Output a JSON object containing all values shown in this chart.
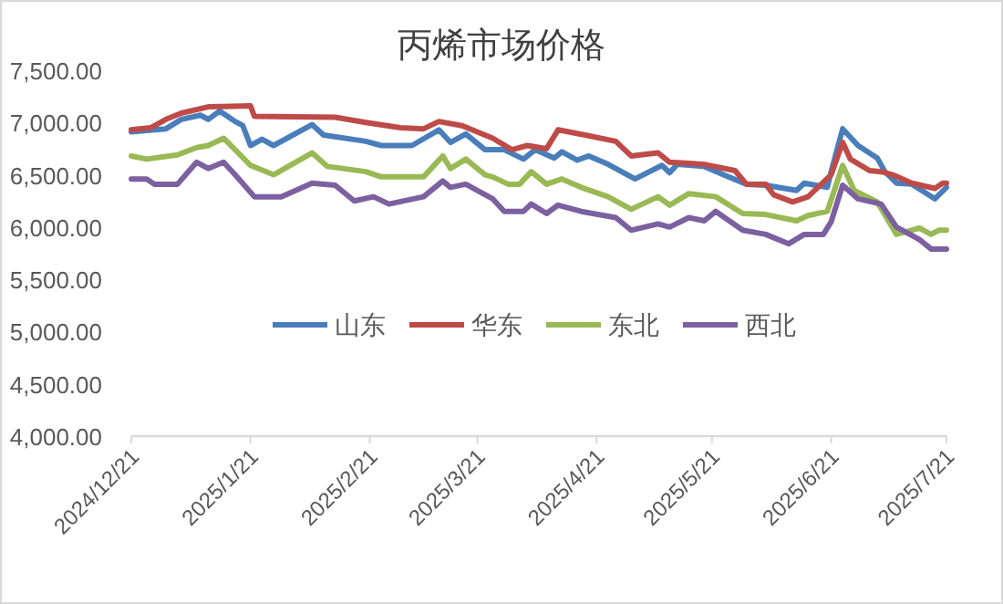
{
  "chart_data": {
    "type": "line",
    "title": "丙烯市场价格",
    "legend": "bottom",
    "grid": false,
    "marker": "none",
    "line_style": "solid",
    "xlim": [
      "2024-12-21",
      "2025-07-21"
    ],
    "xticks": [
      {
        "value": "2024-12-21",
        "label": "2024/12/21"
      },
      {
        "value": "2025-01-21",
        "label": "2025/1/21"
      },
      {
        "value": "2025-02-21",
        "label": "2025/2/21"
      },
      {
        "value": "2025-03-21",
        "label": "2025/3/21"
      },
      {
        "value": "2025-04-21",
        "label": "2025/4/21"
      },
      {
        "value": "2025-05-21",
        "label": "2025/5/21"
      },
      {
        "value": "2025-06-21",
        "label": "2025/6/21"
      },
      {
        "value": "2025-07-21",
        "label": "2025/7/21"
      }
    ],
    "ylim": [
      4000,
      7500
    ],
    "yticks": [
      {
        "value": 4000,
        "label": "4,000.00"
      },
      {
        "value": 4500,
        "label": "4,500.00"
      },
      {
        "value": 5000,
        "label": "5,000.00"
      },
      {
        "value": 5500,
        "label": "5,500.00"
      },
      {
        "value": 6000,
        "label": "6,000.00"
      },
      {
        "value": 6500,
        "label": "6,500.00"
      },
      {
        "value": 7000,
        "label": "7,000.00"
      },
      {
        "value": 7500,
        "label": "7,500.00"
      }
    ],
    "series": [
      {
        "name": "山东",
        "color": "#4a7ebb",
        "x": [
          "2024-12-21",
          "2024-12-30",
          "2025-01-03",
          "2025-01-08",
          "2025-01-10",
          "2025-01-13",
          "2025-01-17",
          "2025-01-19",
          "2025-01-21",
          "2025-01-24",
          "2025-01-27",
          "2025-02-06",
          "2025-02-09",
          "2025-02-20",
          "2025-02-24",
          "2025-03-04",
          "2025-03-11",
          "2025-03-14",
          "2025-03-18",
          "2025-03-23",
          "2025-03-28",
          "2025-04-02",
          "2025-04-05",
          "2025-04-10",
          "2025-04-12",
          "2025-04-16",
          "2025-04-19",
          "2025-04-24",
          "2025-05-01",
          "2025-05-08",
          "2025-05-10",
          "2025-05-12",
          "2025-05-19",
          "2025-05-24",
          "2025-05-30",
          "2025-06-04",
          "2025-06-12",
          "2025-06-14",
          "2025-06-20",
          "2025-06-21",
          "2025-06-24",
          "2025-06-28",
          "2025-07-03",
          "2025-07-05",
          "2025-07-08",
          "2025-07-12",
          "2025-07-18",
          "2025-07-21"
        ],
        "values": [
          6910,
          6940,
          7030,
          7070,
          7030,
          7110,
          7010,
          6970,
          6780,
          6840,
          6780,
          6980,
          6880,
          6820,
          6780,
          6780,
          6930,
          6810,
          6890,
          6740,
          6740,
          6650,
          6740,
          6660,
          6720,
          6640,
          6680,
          6600,
          6460,
          6590,
          6520,
          6600,
          6580,
          6500,
          6410,
          6400,
          6350,
          6420,
          6380,
          6530,
          6940,
          6780,
          6660,
          6530,
          6420,
          6410,
          6270,
          6380
        ]
      },
      {
        "name": "华东",
        "color": "#be4b48",
        "x": [
          "2024-12-21",
          "2024-12-26",
          "2024-12-30",
          "2025-01-03",
          "2025-01-10",
          "2025-01-21",
          "2025-01-22",
          "2025-02-12",
          "2025-02-20",
          "2025-03-01",
          "2025-03-07",
          "2025-03-11",
          "2025-03-17",
          "2025-03-23",
          "2025-03-25",
          "2025-03-30",
          "2025-04-03",
          "2025-04-08",
          "2025-04-11",
          "2025-04-18",
          "2025-04-26",
          "2025-04-30",
          "2025-05-07",
          "2025-05-10",
          "2025-05-19",
          "2025-05-27",
          "2025-05-30",
          "2025-06-04",
          "2025-06-06",
          "2025-06-11",
          "2025-06-15",
          "2025-06-21",
          "2025-06-24",
          "2025-06-26",
          "2025-07-01",
          "2025-07-04",
          "2025-07-07",
          "2025-07-12",
          "2025-07-18",
          "2025-07-20",
          "2025-07-21"
        ],
        "values": [
          6930,
          6950,
          7030,
          7090,
          7150,
          7160,
          7060,
          7050,
          7000,
          6950,
          6940,
          7010,
          6970,
          6880,
          6850,
          6740,
          6780,
          6750,
          6930,
          6880,
          6820,
          6680,
          6710,
          6620,
          6600,
          6540,
          6410,
          6410,
          6310,
          6240,
          6290,
          6500,
          6810,
          6650,
          6540,
          6530,
          6500,
          6420,
          6370,
          6420,
          6420
        ]
      },
      {
        "name": "东北",
        "color": "#98b954",
        "x": [
          "2024-12-21",
          "2024-12-25",
          "2025-01-02",
          "2025-01-07",
          "2025-01-10",
          "2025-01-14",
          "2025-01-17",
          "2025-01-21",
          "2025-01-27",
          "2025-02-06",
          "2025-02-10",
          "2025-02-20",
          "2025-02-24",
          "2025-03-07",
          "2025-03-12",
          "2025-03-14",
          "2025-03-18",
          "2025-03-23",
          "2025-03-25",
          "2025-03-29",
          "2025-04-01",
          "2025-04-04",
          "2025-04-08",
          "2025-04-12",
          "2025-04-17",
          "2025-04-24",
          "2025-04-30",
          "2025-05-07",
          "2025-05-10",
          "2025-05-15",
          "2025-05-22",
          "2025-05-29",
          "2025-06-04",
          "2025-06-12",
          "2025-06-15",
          "2025-06-20",
          "2025-06-24",
          "2025-06-27",
          "2025-07-03",
          "2025-07-08",
          "2025-07-14",
          "2025-07-17",
          "2025-07-19",
          "2025-07-21"
        ],
        "values": [
          6680,
          6650,
          6690,
          6760,
          6780,
          6850,
          6740,
          6590,
          6500,
          6710,
          6580,
          6530,
          6480,
          6480,
          6680,
          6560,
          6650,
          6500,
          6480,
          6410,
          6410,
          6530,
          6410,
          6460,
          6380,
          6290,
          6170,
          6290,
          6210,
          6320,
          6290,
          6130,
          6120,
          6060,
          6110,
          6150,
          6590,
          6350,
          6240,
          5930,
          5990,
          5930,
          5970,
          5970
        ]
      },
      {
        "name": "西北",
        "color": "#7d60a0",
        "x": [
          "2024-12-21",
          "2024-12-25",
          "2024-12-27",
          "2025-01-02",
          "2025-01-07",
          "2025-01-10",
          "2025-01-14",
          "2025-01-17",
          "2025-01-22",
          "2025-01-29",
          "2025-02-06",
          "2025-02-12",
          "2025-02-17",
          "2025-02-22",
          "2025-02-26",
          "2025-03-07",
          "2025-03-12",
          "2025-03-14",
          "2025-03-18",
          "2025-03-23",
          "2025-03-25",
          "2025-03-28",
          "2025-04-02",
          "2025-04-04",
          "2025-04-08",
          "2025-04-11",
          "2025-04-17",
          "2025-04-26",
          "2025-04-30",
          "2025-05-07",
          "2025-05-10",
          "2025-05-15",
          "2025-05-19",
          "2025-05-22",
          "2025-05-29",
          "2025-06-04",
          "2025-06-10",
          "2025-06-14",
          "2025-06-19",
          "2025-06-21",
          "2025-06-24",
          "2025-06-28",
          "2025-07-04",
          "2025-07-08",
          "2025-07-14",
          "2025-07-17",
          "2025-07-21"
        ],
        "values": [
          6460,
          6460,
          6410,
          6410,
          6620,
          6560,
          6620,
          6500,
          6290,
          6290,
          6420,
          6400,
          6250,
          6290,
          6220,
          6290,
          6440,
          6380,
          6410,
          6310,
          6270,
          6150,
          6150,
          6220,
          6130,
          6210,
          6150,
          6090,
          5970,
          6030,
          6000,
          6090,
          6060,
          6150,
          5970,
          5930,
          5840,
          5930,
          5930,
          6050,
          6400,
          6270,
          6220,
          6000,
          5880,
          5790,
          5790
        ]
      }
    ]
  }
}
